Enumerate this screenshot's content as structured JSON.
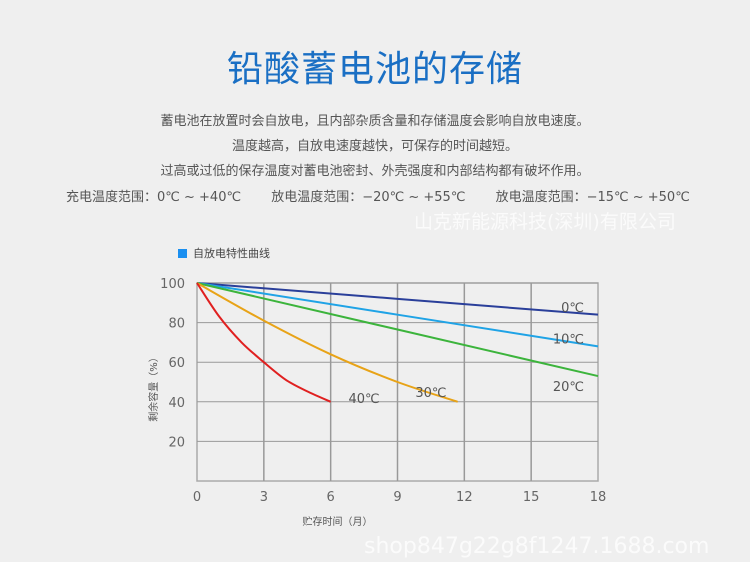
{
  "title": "铅酸蓄电池的存储",
  "paragraphs": [
    "蓄电池在放置时会自放电，且内部杂质含量和存储温度会影响自放电速度。",
    "温度越高，自放电速度越快，可保存的时间越短。",
    "过高或过低的保存温度对蓄电池密封、外壳强度和内部结构都有破坏作用。"
  ],
  "ranges": [
    "充电温度范围：0℃ ~ +40℃",
    "放电温度范围：−20℃ ~ +55℃",
    "放电温度范围：−15℃ ~ +50℃"
  ],
  "watermark": [
    "山克新能源科技(深圳)有限公司",
    "shop847g22g8f1247.1688.com"
  ],
  "chart_data": {
    "type": "line",
    "title": "自放电特性曲线",
    "xlabel": "贮存时间（月）",
    "ylabel": "剩余容量（%）",
    "xlim": [
      0,
      18
    ],
    "ylim": [
      0,
      100
    ],
    "xticks": [
      0,
      3,
      6,
      9,
      12,
      15,
      18
    ],
    "yticks": [
      20,
      40,
      60,
      80,
      100
    ],
    "grid": true,
    "legend": "top-left",
    "series": [
      {
        "name": "0℃",
        "color": "#2a3f9a",
        "x": [
          0,
          18
        ],
        "y": [
          100,
          84
        ]
      },
      {
        "name": "10℃",
        "color": "#1fa3e6",
        "x": [
          0,
          18
        ],
        "y": [
          100,
          68
        ]
      },
      {
        "name": "20℃",
        "color": "#3cb43c",
        "x": [
          0,
          18
        ],
        "y": [
          100,
          53
        ]
      },
      {
        "name": "30℃",
        "color": "#e8a317",
        "x": [
          0,
          3,
          6,
          9,
          11.7
        ],
        "y": [
          100,
          81,
          64,
          50,
          40
        ]
      },
      {
        "name": "40℃",
        "color": "#e02020",
        "x": [
          0,
          1,
          2,
          3,
          4,
          5,
          6
        ],
        "y": [
          100,
          83,
          70,
          60,
          51,
          45,
          40
        ]
      }
    ]
  }
}
